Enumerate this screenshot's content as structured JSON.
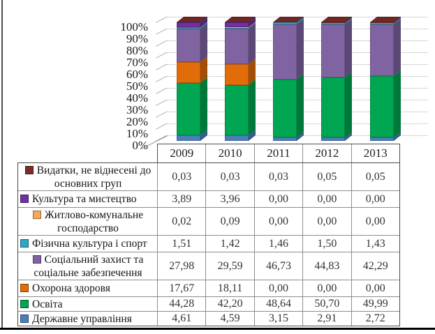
{
  "chart_data": {
    "type": "bar",
    "stacked": "percent",
    "title": "",
    "xlabel": "",
    "ylabel": "",
    "categories": [
      "2009",
      "2010",
      "2011",
      "2012",
      "2013"
    ],
    "series": [
      {
        "name": "Державне управління",
        "color": "#4A7EBB",
        "values": [
          4.61,
          4.59,
          3.15,
          2.91,
          2.72
        ]
      },
      {
        "name": "Освіта",
        "color": "#00A651",
        "values": [
          44.28,
          42.2,
          48.64,
          50.7,
          49.99
        ]
      },
      {
        "name": "Охорона здоровя",
        "color": "#E36C0A",
        "values": [
          17.67,
          18.11,
          0.0,
          0.0,
          0.0
        ]
      },
      {
        "name": "Соціальний захист та соціальне забезпечення",
        "color": "#8064A2",
        "values": [
          27.98,
          29.59,
          46.73,
          44.83,
          42.29
        ]
      },
      {
        "name": "Фізична культура і спорт",
        "color": "#2EA6C8",
        "values": [
          1.51,
          1.42,
          1.46,
          1.5,
          1.43
        ]
      },
      {
        "name": "Житлово-комунальне господарство",
        "color": "#FAA75B",
        "values": [
          0.02,
          0.09,
          0.0,
          0.0,
          0.0
        ]
      },
      {
        "name": "Культура та мистецтво",
        "color": "#7030A0",
        "values": [
          3.89,
          3.96,
          0.0,
          0.0,
          0.0
        ]
      },
      {
        "name": "Видатки, не віднесені до основних груп",
        "color": "#7B2C27",
        "values": [
          0.03,
          0.03,
          0.03,
          0.05,
          0.05
        ]
      }
    ],
    "yticks": [
      "100%",
      "90%",
      "80%",
      "70%",
      "60%",
      "50%",
      "40%",
      "30%",
      "20%",
      "10%",
      "0%"
    ],
    "ylim": [
      0,
      100
    ],
    "grid": true,
    "legend_position": "table-below-chart"
  },
  "table": {
    "header": [
      "2009",
      "2010",
      "2011",
      "2012",
      "2013"
    ],
    "rows": [
      {
        "label": "Видатки, не віднесені до основних груп",
        "marker_color": "#7B2C27",
        "values": [
          "0,03",
          "0,03",
          "0,03",
          "0,05",
          "0,05"
        ]
      },
      {
        "label": "Культура та мистецтво",
        "marker_color": "#7030A0",
        "values": [
          "3,89",
          "3,96",
          "0,00",
          "0,00",
          "0,00"
        ]
      },
      {
        "label": "Житлово-комунальне господарство",
        "marker_color": "#FAA75B",
        "values": [
          "0,02",
          "0,09",
          "0,00",
          "0,00",
          "0,00"
        ]
      },
      {
        "label": "Фізична культура і спорт",
        "marker_color": "#2EA6C8",
        "values": [
          "1,51",
          "1,42",
          "1,46",
          "1,50",
          "1,43"
        ]
      },
      {
        "label": "Соціальний захист та соціальне забезпечення",
        "marker_color": "#8064A2",
        "values": [
          "27,98",
          "29,59",
          "46,73",
          "44,83",
          "42,29"
        ]
      },
      {
        "label": "Охорона здоровя",
        "marker_color": "#E36C0A",
        "values": [
          "17,67",
          "18,11",
          "0,00",
          "0,00",
          "0,00"
        ]
      },
      {
        "label": "Освіта",
        "marker_color": "#00A651",
        "values": [
          "44,28",
          "42,20",
          "48,64",
          "50,70",
          "49,99"
        ]
      },
      {
        "label": "Державне управління",
        "marker_color": "#4A7EBB",
        "values": [
          "4,61",
          "4,59",
          "3,15",
          "2,91",
          "2,72"
        ]
      }
    ]
  }
}
